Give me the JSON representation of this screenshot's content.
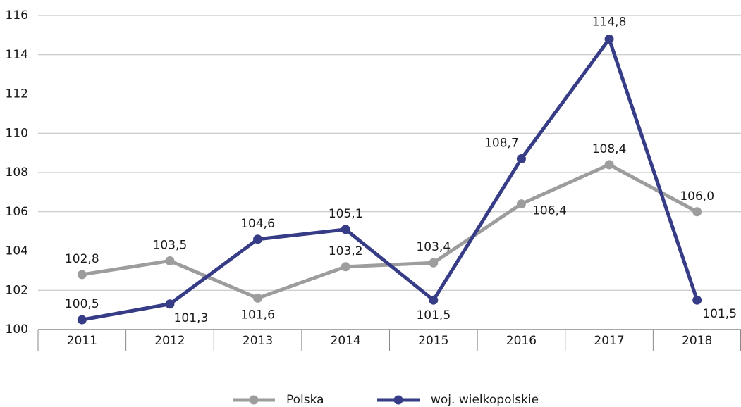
{
  "chart_data": {
    "type": "line",
    "categories": [
      "2011",
      "2012",
      "2013",
      "2014",
      "2015",
      "2016",
      "2017",
      "2018"
    ],
    "series": [
      {
        "name": "Polska",
        "color": "#9d9d9d",
        "values": [
          102.8,
          103.5,
          101.6,
          103.2,
          103.4,
          106.4,
          108.4,
          106.0
        ],
        "value_labels": [
          "102,8",
          "103,5",
          "101,6",
          "103,2",
          "103,4",
          "106,4",
          "108,4",
          "106,0"
        ]
      },
      {
        "name": "woj. wielkopolskie",
        "color": "#363c86",
        "values": [
          100.5,
          101.3,
          104.6,
          105.1,
          101.5,
          108.7,
          114.8,
          101.5
        ],
        "value_labels": [
          "100,5",
          "101,3",
          "104,6",
          "105,1",
          "101,5",
          "108,7",
          "114,8",
          "101,5"
        ]
      }
    ],
    "ylim": [
      100,
      116
    ],
    "yticks": [
      100,
      102,
      104,
      106,
      108,
      110,
      112,
      114,
      116
    ],
    "grid": true,
    "legend": "bottom"
  }
}
